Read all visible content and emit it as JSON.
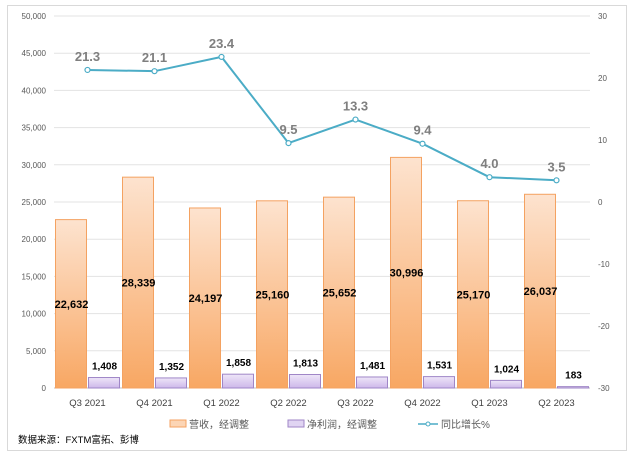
{
  "chart_data": {
    "type": "bar",
    "categories": [
      "Q3 2021",
      "Q4 2021",
      "Q1 2022",
      "Q2 2022",
      "Q3 2022",
      "Q4 2022",
      "Q1 2023",
      "Q2 2023"
    ],
    "series": [
      {
        "name": "营收，经调整",
        "type": "bar",
        "axis": "left",
        "color": "#f9b27a",
        "values": [
          22632,
          28339,
          24197,
          25160,
          25652,
          30996,
          25170,
          26037
        ],
        "labels": [
          "22,632",
          "28,339",
          "24,197",
          "25,160",
          "25,652",
          "30,996",
          "25,170",
          "26,037"
        ]
      },
      {
        "name": "净利润，经调整",
        "type": "bar",
        "axis": "left",
        "color": "#d9c9ef",
        "values": [
          1408,
          1352,
          1858,
          1813,
          1481,
          1531,
          1024,
          183
        ],
        "labels": [
          "1,408",
          "1,352",
          "1,858",
          "1,813",
          "1,481",
          "1,531",
          "1,024",
          "183"
        ]
      },
      {
        "name": "同比增长%",
        "type": "line",
        "axis": "right",
        "color": "#4bacc6",
        "values": [
          21.3,
          21.1,
          23.4,
          9.5,
          13.3,
          9.4,
          4.0,
          3.5
        ],
        "labels": [
          "21.3",
          "21.1",
          "23.4",
          "9.5",
          "13.3",
          "9.4",
          "4.0",
          "3.5"
        ]
      }
    ],
    "ylim_left": [
      0,
      50000
    ],
    "yticks_left": [
      "0",
      "5,000",
      "10,000",
      "15,000",
      "20,000",
      "25,000",
      "30,000",
      "35,000",
      "40,000",
      "45,000",
      "50,000"
    ],
    "ylim_right": [
      -30,
      30
    ],
    "yticks_right": [
      "-30",
      "-20",
      "-10",
      "0",
      "10",
      "20",
      "30"
    ],
    "grid": true,
    "legend": "bottom"
  },
  "source": "数据来源：FXTM富拓、彭博"
}
